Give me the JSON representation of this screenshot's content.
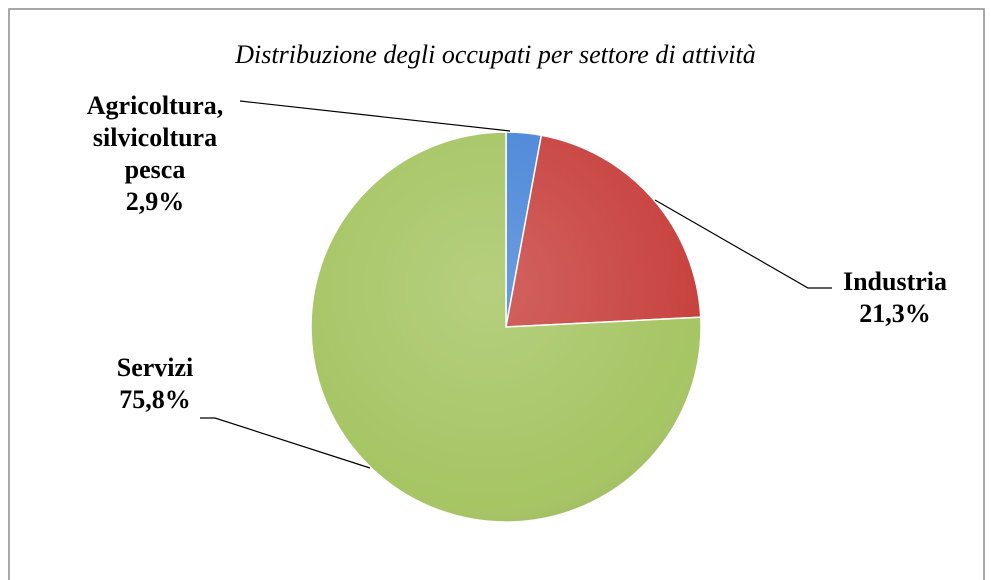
{
  "chart_data": {
    "type": "pie",
    "title": "Distribuzione degli occupati per settore di attività",
    "categories": [
      "Agricoltura, silvicoltura pesca",
      "Industria",
      "Servizi"
    ],
    "values": [
      2.9,
      21.3,
      75.8
    ],
    "value_labels": [
      "2,9%",
      "21,3%",
      "75,8%"
    ],
    "colors": [
      "#4a86d8",
      "#c8423f",
      "#a6c563"
    ]
  }
}
